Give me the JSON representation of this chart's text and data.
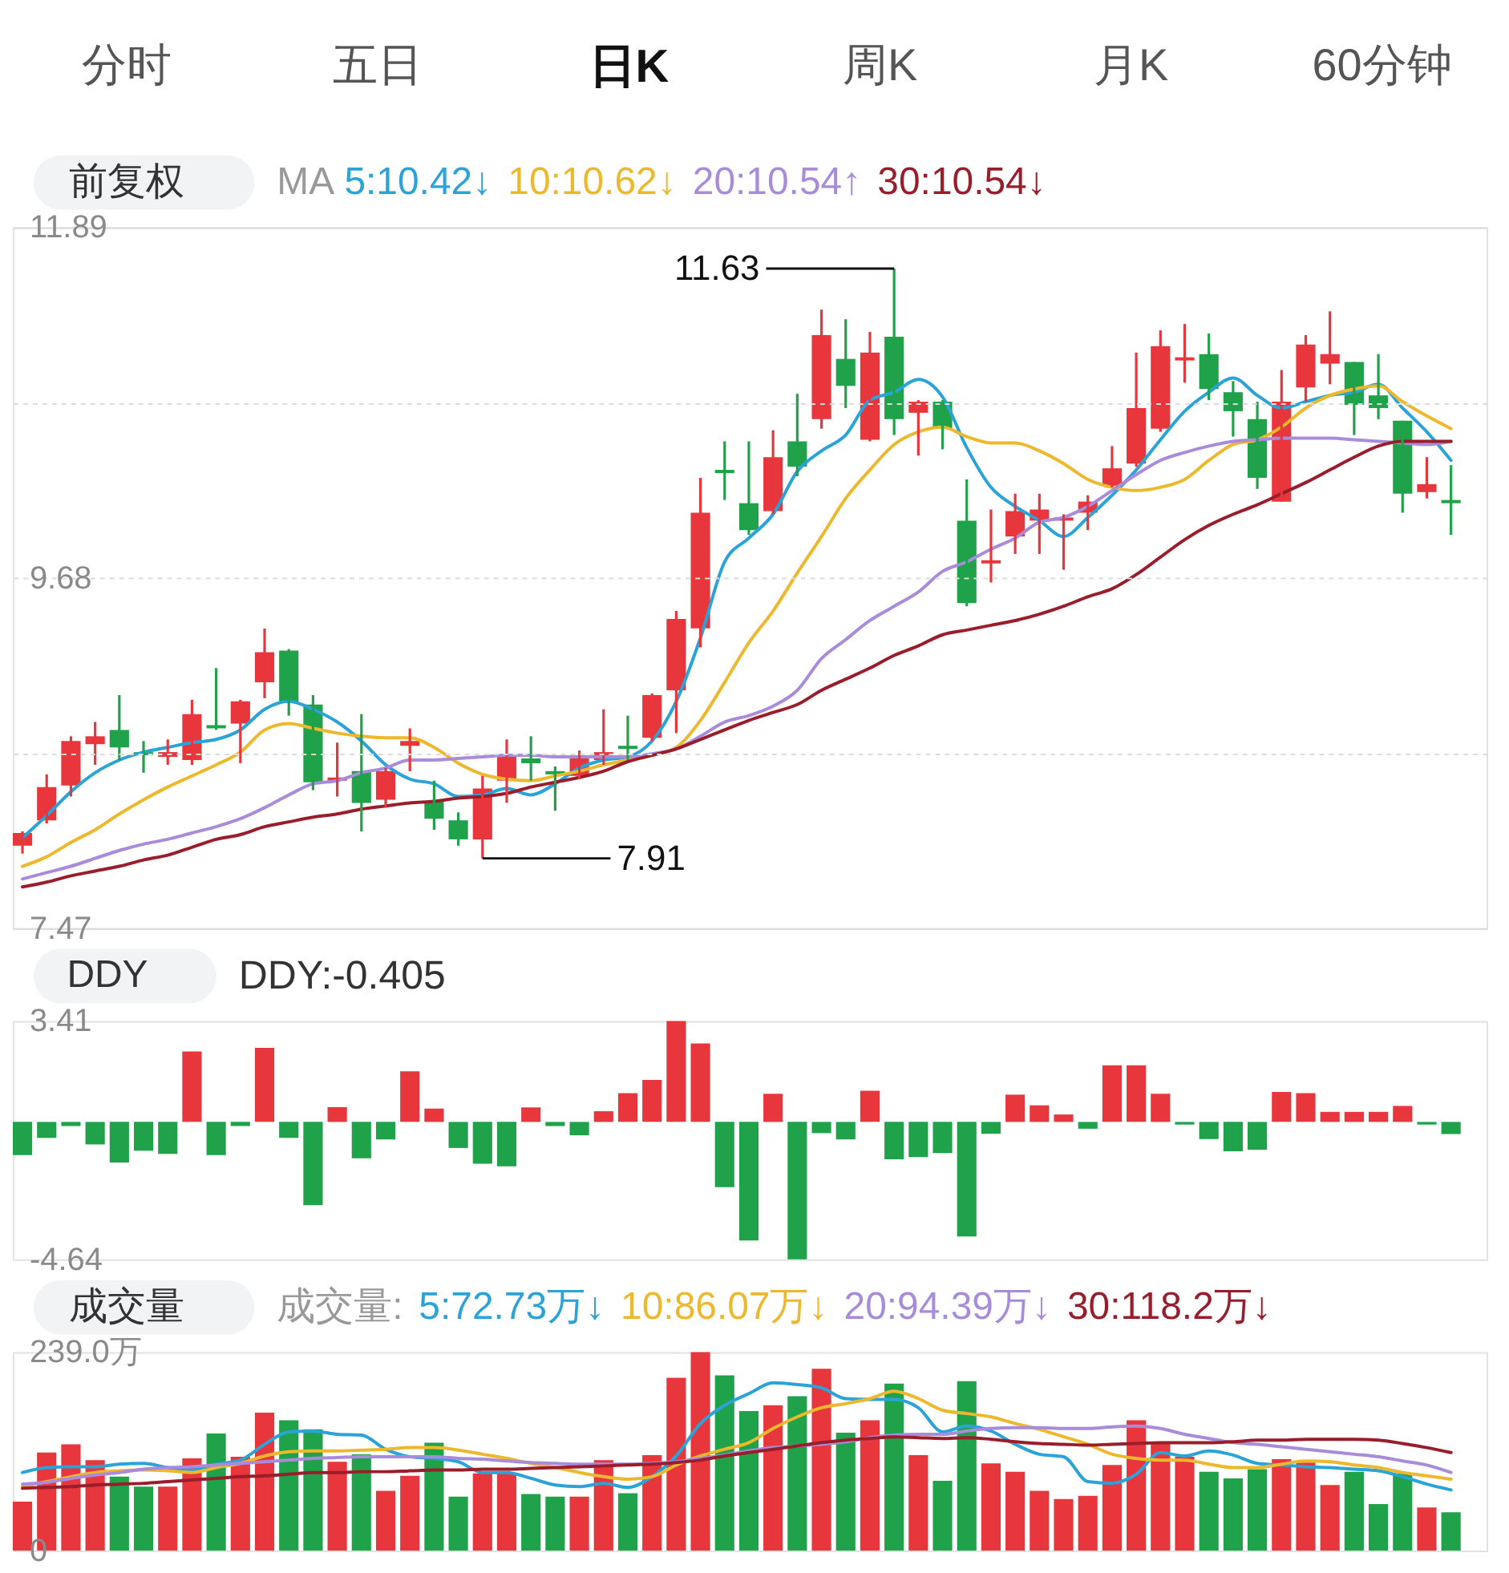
{
  "chart_data": [
    {
      "type": "other",
      "annotations": [
        "分时",
        "五日",
        "日K",
        "周K",
        "月K",
        "60分钟"
      ]
    },
    {
      "type": "candlestick",
      "title": "前复权",
      "annotations": [
        "11.63",
        "7.91"
      ],
      "legend": "top left",
      "legend_title": "MA",
      "categories": [
        null,
        null,
        null,
        null,
        null,
        null,
        null,
        null,
        null,
        null,
        null,
        null,
        null,
        null,
        null,
        null,
        null,
        null,
        null,
        null,
        null,
        null,
        null,
        null,
        null,
        null,
        null,
        null,
        null,
        null,
        null,
        null,
        null,
        null,
        null,
        null,
        null,
        null,
        null,
        null,
        null,
        null,
        null,
        null,
        null,
        null,
        null,
        null,
        null,
        null,
        null,
        null,
        null,
        null,
        null,
        null,
        null,
        null,
        null,
        null
      ],
      "ohlc": [
        [
          7.99,
          8.08,
          7.94,
          8.07
        ],
        [
          8.15,
          8.44,
          8.13,
          8.36
        ],
        [
          8.37,
          8.68,
          8.3,
          8.65
        ],
        [
          8.63,
          8.77,
          8.5,
          8.68
        ],
        [
          8.72,
          8.94,
          8.53,
          8.61
        ],
        [
          8.58,
          8.65,
          8.45,
          8.56
        ],
        [
          8.55,
          8.66,
          8.5,
          8.58
        ],
        [
          8.53,
          8.91,
          8.5,
          8.82
        ],
        [
          8.75,
          9.11,
          8.72,
          8.73
        ],
        [
          8.76,
          8.91,
          8.51,
          8.9
        ],
        [
          9.02,
          9.36,
          8.92,
          9.21
        ],
        [
          9.22,
          9.23,
          8.81,
          8.89
        ],
        [
          8.88,
          8.94,
          8.34,
          8.39
        ],
        [
          8.4,
          8.64,
          8.3,
          8.42
        ],
        [
          8.46,
          8.82,
          8.08,
          8.26
        ],
        [
          8.28,
          8.48,
          8.23,
          8.46
        ],
        [
          8.62,
          8.73,
          8.46,
          8.65
        ],
        [
          8.27,
          8.4,
          8.09,
          8.16
        ],
        [
          8.15,
          8.2,
          7.99,
          8.03
        ],
        [
          8.03,
          8.43,
          7.91,
          8.35
        ],
        [
          8.4,
          8.66,
          8.26,
          8.55
        ],
        [
          8.54,
          8.68,
          8.4,
          8.51
        ],
        [
          8.46,
          8.49,
          8.21,
          8.44
        ],
        [
          8.43,
          8.59,
          8.41,
          8.56
        ],
        [
          8.53,
          8.85,
          8.5,
          8.58
        ],
        [
          8.62,
          8.81,
          8.53,
          8.6
        ],
        [
          8.67,
          8.95,
          8.65,
          8.94
        ],
        [
          8.97,
          9.47,
          8.7,
          9.42
        ],
        [
          9.36,
          10.31,
          9.24,
          10.09
        ],
        [
          10.36,
          10.54,
          10.17,
          10.34
        ],
        [
          10.15,
          10.54,
          9.95,
          9.98
        ],
        [
          10.1,
          10.61,
          10.08,
          10.44
        ],
        [
          10.54,
          10.84,
          10.32,
          10.38
        ],
        [
          10.68,
          11.37,
          10.62,
          11.21
        ],
        [
          11.06,
          11.31,
          10.75,
          10.89
        ],
        [
          10.55,
          11.23,
          10.54,
          11.1
        ],
        [
          11.2,
          11.63,
          10.58,
          10.68
        ],
        [
          10.72,
          10.8,
          10.45,
          10.79
        ],
        [
          10.79,
          10.8,
          10.49,
          10.62
        ],
        [
          10.04,
          10.3,
          9.5,
          9.52
        ],
        [
          9.77,
          10.11,
          9.65,
          9.79
        ],
        [
          9.94,
          10.21,
          9.83,
          10.1
        ],
        [
          10.04,
          10.21,
          9.83,
          10.11
        ],
        [
          10.04,
          10.08,
          9.73,
          10.06
        ],
        [
          10.09,
          10.2,
          9.98,
          10.16
        ],
        [
          10.26,
          10.51,
          10.25,
          10.37
        ],
        [
          10.4,
          11.1,
          10.38,
          10.75
        ],
        [
          10.62,
          11.24,
          10.6,
          11.14
        ],
        [
          11.05,
          11.28,
          10.91,
          11.07
        ],
        [
          11.09,
          11.22,
          10.8,
          10.87
        ],
        [
          10.85,
          10.92,
          10.57,
          10.73
        ],
        [
          10.68,
          10.79,
          10.24,
          10.31
        ],
        [
          10.16,
          10.99,
          10.16,
          10.79
        ],
        [
          10.88,
          11.21,
          10.79,
          11.15
        ],
        [
          11.03,
          11.36,
          10.9,
          11.09
        ],
        [
          11.04,
          11.04,
          10.58,
          10.77
        ],
        [
          10.83,
          11.09,
          10.68,
          10.75
        ],
        [
          10.67,
          10.67,
          10.09,
          10.21
        ],
        [
          10.22,
          10.44,
          10.18,
          10.27
        ],
        [
          10.17,
          10.39,
          9.95,
          10.15
        ]
      ],
      "colors": [
        "#e8363d",
        "#e8363d",
        "#e8363d",
        "#e8363d",
        "#1fa24a",
        "#1fa24a",
        "#e8363d",
        "#e8363d",
        "#1fa24a",
        "#e8363d",
        "#e8363d",
        "#1fa24a",
        "#1fa24a",
        "#e8363d",
        "#1fa24a",
        "#e8363d",
        "#e8363d",
        "#1fa24a",
        "#1fa24a",
        "#e8363d",
        "#e8363d",
        "#1fa24a",
        "#1fa24a",
        "#e8363d",
        "#e8363d",
        "#1fa24a",
        "#e8363d",
        "#e8363d",
        "#e8363d",
        "#1fa24a",
        "#1fa24a",
        "#e8363d",
        "#1fa24a",
        "#e8363d",
        "#1fa24a",
        "#e8363d",
        "#1fa24a",
        "#e8363d",
        "#1fa24a",
        "#1fa24a",
        "#e8363d",
        "#e8363d",
        "#e8363d",
        "#e8363d",
        "#e8363d",
        "#e8363d",
        "#e8363d",
        "#e8363d",
        "#e8363d",
        "#1fa24a",
        "#1fa24a",
        "#1fa24a",
        "#e8363d",
        "#e8363d",
        "#e8363d",
        "#1fa24a",
        "#1fa24a",
        "#1fa24a",
        "#e8363d",
        "#1fa24a"
      ],
      "series": [
        {
          "name": "5:10.42↓",
          "color": "#2aa3d9",
          "type": "line",
          "values": [
            8.04,
            8.18,
            8.33,
            8.45,
            8.53,
            8.58,
            8.61,
            8.64,
            8.66,
            8.72,
            8.85,
            8.9,
            8.85,
            8.77,
            8.65,
            8.5,
            8.41,
            8.38,
            8.3,
            8.31,
            8.35,
            8.31,
            8.38,
            8.48,
            8.53,
            8.55,
            8.65,
            8.9,
            9.3,
            9.78,
            9.93,
            10.08,
            10.35,
            10.48,
            10.58,
            10.8,
            10.85,
            10.93,
            10.82,
            10.5,
            10.25,
            10.13,
            10.04,
            9.94,
            10.06,
            10.2,
            10.36,
            10.55,
            10.73,
            10.85,
            10.94,
            10.83,
            10.75,
            10.79,
            10.83,
            10.85,
            10.9,
            10.75,
            10.6,
            10.42
          ]
        },
        {
          "name": "10:10.62↓",
          "color": "#eeb82c",
          "type": "line",
          "values": [
            7.86,
            7.92,
            8.01,
            8.09,
            8.19,
            8.28,
            8.36,
            8.43,
            8.5,
            8.58,
            8.72,
            8.76,
            8.73,
            8.7,
            8.68,
            8.67,
            8.67,
            8.61,
            8.51,
            8.44,
            8.41,
            8.4,
            8.43,
            8.46,
            8.5,
            8.53,
            8.56,
            8.61,
            8.78,
            9.02,
            9.27,
            9.47,
            9.71,
            9.94,
            10.18,
            10.36,
            10.52,
            10.6,
            10.63,
            10.57,
            10.53,
            10.53,
            10.48,
            10.4,
            10.3,
            10.25,
            10.23,
            10.25,
            10.3,
            10.42,
            10.52,
            10.55,
            10.63,
            10.75,
            10.83,
            10.87,
            10.89,
            10.79,
            10.7,
            10.62
          ]
        },
        {
          "name": "20:10.54↑",
          "color": "#a98bdc",
          "type": "line",
          "values": [
            7.78,
            7.82,
            7.86,
            7.91,
            7.96,
            8.0,
            8.03,
            8.07,
            8.11,
            8.16,
            8.23,
            8.31,
            8.38,
            8.4,
            8.45,
            8.48,
            8.53,
            8.53,
            8.54,
            8.55,
            8.56,
            8.56,
            8.55,
            8.55,
            8.55,
            8.55,
            8.57,
            8.6,
            8.68,
            8.77,
            8.81,
            8.87,
            8.97,
            9.17,
            9.29,
            9.41,
            9.5,
            9.59,
            9.72,
            9.78,
            9.86,
            9.93,
            10.03,
            10.06,
            10.13,
            10.23,
            10.33,
            10.42,
            10.47,
            10.51,
            10.54,
            10.55,
            10.56,
            10.56,
            10.56,
            10.55,
            10.54,
            10.53,
            10.52,
            10.54
          ]
        },
        {
          "name": "30:10.54↓",
          "color": "#9a1d2b",
          "type": "line",
          "values": [
            7.73,
            7.76,
            7.8,
            7.83,
            7.86,
            7.9,
            7.93,
            7.98,
            8.03,
            8.06,
            8.11,
            8.14,
            8.17,
            8.19,
            8.22,
            8.24,
            8.26,
            8.27,
            8.29,
            8.3,
            8.32,
            8.36,
            8.39,
            8.42,
            8.46,
            8.52,
            8.56,
            8.6,
            8.66,
            8.72,
            8.78,
            8.83,
            8.88,
            8.97,
            9.04,
            9.11,
            9.19,
            9.25,
            9.32,
            9.35,
            9.38,
            9.41,
            9.45,
            9.5,
            9.56,
            9.61,
            9.7,
            9.81,
            9.92,
            10.01,
            10.08,
            10.14,
            10.21,
            10.28,
            10.36,
            10.44,
            10.51,
            10.54,
            10.54,
            10.54
          ]
        }
      ],
      "ylim": [
        7.47,
        11.89
      ],
      "yticks": [
        11.89,
        {
          "value": 10.785,
          "label": null
        },
        9.68,
        {
          "value": 8.575,
          "label": null
        },
        7.47
      ],
      "grid": "y",
      "tick_labels": "y"
    },
    {
      "type": "bar",
      "title": "DDY",
      "subtitle": "DDY:-0.405",
      "categories": [
        null,
        null,
        null,
        null,
        null,
        null,
        null,
        null,
        null,
        null,
        null,
        null,
        null,
        null,
        null,
        null,
        null,
        null,
        null,
        null,
        null,
        null,
        null,
        null,
        null,
        null,
        null,
        null,
        null,
        null,
        null,
        null,
        null,
        null,
        null,
        null,
        null,
        null,
        null,
        null,
        null,
        null,
        null,
        null,
        null,
        null,
        null,
        null,
        null,
        null,
        null,
        null,
        null,
        null,
        null,
        null,
        null,
        null,
        null,
        null
      ],
      "values": [
        -1.12,
        -0.54,
        -0.14,
        -0.76,
        -1.37,
        -0.97,
        -1.08,
        2.38,
        -1.12,
        -0.14,
        2.5,
        -0.54,
        -2.81,
        0.5,
        -1.23,
        -0.59,
        1.71,
        0.45,
        -0.88,
        -1.41,
        -1.5,
        0.49,
        -0.14,
        -0.45,
        0.36,
        0.97,
        1.42,
        3.41,
        2.65,
        -2.2,
        -4.0,
        0.95,
        -4.64,
        -0.38,
        -0.59,
        1.05,
        -1.26,
        -1.19,
        -1.05,
        -3.87,
        -0.4,
        0.92,
        0.56,
        0.25,
        -0.23,
        1.91,
        1.91,
        0.95,
        -0.09,
        -0.58,
        -0.99,
        -0.94,
        1.01,
        0.97,
        0.34,
        0.34,
        0.34,
        0.54,
        -0.09,
        -0.41
      ],
      "colors": [
        "#1fa24a",
        "#1fa24a",
        "#1fa24a",
        "#1fa24a",
        "#1fa24a",
        "#1fa24a",
        "#1fa24a",
        "#e8363d",
        "#1fa24a",
        "#1fa24a",
        "#e8363d",
        "#1fa24a",
        "#1fa24a",
        "#e8363d",
        "#1fa24a",
        "#1fa24a",
        "#e8363d",
        "#e8363d",
        "#1fa24a",
        "#1fa24a",
        "#1fa24a",
        "#e8363d",
        "#1fa24a",
        "#1fa24a",
        "#e8363d",
        "#e8363d",
        "#e8363d",
        "#e8363d",
        "#e8363d",
        "#1fa24a",
        "#1fa24a",
        "#e8363d",
        "#1fa24a",
        "#1fa24a",
        "#1fa24a",
        "#e8363d",
        "#1fa24a",
        "#1fa24a",
        "#1fa24a",
        "#1fa24a",
        "#1fa24a",
        "#e8363d",
        "#e8363d",
        "#e8363d",
        "#1fa24a",
        "#e8363d",
        "#e8363d",
        "#e8363d",
        "#1fa24a",
        "#1fa24a",
        "#1fa24a",
        "#1fa24a",
        "#e8363d",
        "#e8363d",
        "#e8363d",
        "#e8363d",
        "#e8363d",
        "#e8363d",
        "#1fa24a",
        "#1fa24a"
      ],
      "ylim": [
        -4.64,
        3.41
      ],
      "yticks": [
        3.41,
        -4.64
      ],
      "tick_labels": "y"
    },
    {
      "type": "bar",
      "title": "成交量",
      "legend": "top",
      "legend_title": "成交量:",
      "categories": [
        null,
        null,
        null,
        null,
        null,
        null,
        null,
        null,
        null,
        null,
        null,
        null,
        null,
        null,
        null,
        null,
        null,
        null,
        null,
        null,
        null,
        null,
        null,
        null,
        null,
        null,
        null,
        null,
        null,
        null,
        null,
        null,
        null,
        null,
        null,
        null,
        null,
        null,
        null,
        null,
        null,
        null,
        null,
        null,
        null,
        null,
        null,
        null,
        null,
        null,
        null,
        null,
        null,
        null,
        null,
        null,
        null,
        null,
        null,
        null
      ],
      "values": [
        59,
        118,
        128,
        109,
        89,
        77,
        77,
        111,
        141,
        113,
        166,
        157,
        146,
        107,
        116,
        72,
        90,
        130,
        65,
        93,
        93,
        68,
        65,
        65,
        109,
        69,
        115,
        208,
        239,
        211,
        168,
        175,
        186,
        219,
        142,
        157,
        201,
        115,
        84,
        204,
        105,
        95,
        72,
        62,
        66,
        103,
        157,
        130,
        113,
        95,
        87,
        98,
        110,
        106,
        79,
        95,
        56,
        93,
        52,
        46
      ],
      "colors": [
        "#e8363d",
        "#e8363d",
        "#e8363d",
        "#e8363d",
        "#1fa24a",
        "#1fa24a",
        "#e8363d",
        "#e8363d",
        "#1fa24a",
        "#e8363d",
        "#e8363d",
        "#1fa24a",
        "#1fa24a",
        "#e8363d",
        "#1fa24a",
        "#e8363d",
        "#e8363d",
        "#1fa24a",
        "#1fa24a",
        "#e8363d",
        "#e8363d",
        "#1fa24a",
        "#1fa24a",
        "#e8363d",
        "#e8363d",
        "#1fa24a",
        "#e8363d",
        "#e8363d",
        "#e8363d",
        "#1fa24a",
        "#1fa24a",
        "#e8363d",
        "#1fa24a",
        "#e8363d",
        "#1fa24a",
        "#e8363d",
        "#1fa24a",
        "#e8363d",
        "#1fa24a",
        "#1fa24a",
        "#e8363d",
        "#e8363d",
        "#e8363d",
        "#e8363d",
        "#e8363d",
        "#e8363d",
        "#e8363d",
        "#e8363d",
        "#e8363d",
        "#1fa24a",
        "#1fa24a",
        "#1fa24a",
        "#e8363d",
        "#e8363d",
        "#e8363d",
        "#1fa24a",
        "#1fa24a",
        "#1fa24a",
        "#e8363d",
        "#1fa24a"
      ],
      "series": [
        {
          "name": "5:72.73万↓",
          "color": "#2aa3d9",
          "type": "line",
          "values": [
            94,
            100,
            101,
            101,
            104,
            105,
            100,
            97,
            104,
            109,
            128,
            143,
            144,
            140,
            139,
            122,
            113,
            111,
            107,
            94,
            94,
            87,
            79,
            77,
            81,
            76,
            89,
            114,
            153,
            175,
            189,
            202,
            200,
            196,
            183,
            182,
            182,
            172,
            143,
            150,
            144,
            128,
            116,
            113,
            83,
            81,
            92,
            118,
            114,
            120,
            115,
            105,
            103,
            101,
            100,
            98,
            96,
            89,
            80,
            73
          ]
        },
        {
          "name": "10:86.07万↓",
          "color": "#eeb82c",
          "type": "line",
          "values": [
            77,
            83,
            89,
            94,
            96,
            97,
            96,
            94,
            100,
            105,
            114,
            119,
            120,
            120,
            121,
            122,
            124,
            124,
            121,
            116,
            111,
            105,
            100,
            94,
            89,
            86,
            89,
            103,
            114,
            122,
            130,
            147,
            161,
            172,
            177,
            183,
            192,
            183,
            169,
            165,
            161,
            153,
            146,
            137,
            128,
            116,
            111,
            109,
            109,
            104,
            100,
            100,
            104,
            108,
            107,
            103,
            100,
            94,
            90,
            86
          ]
        },
        {
          "name": "20:94.39万↓",
          "color": "#a98bdc",
          "type": "line",
          "values": [
            80,
            82,
            87,
            91,
            94,
            98,
            100,
            101,
            103,
            105,
            107,
            109,
            111,
            112,
            113,
            113,
            113,
            113,
            111,
            110,
            108,
            106,
            105,
            104,
            104,
            104,
            105,
            107,
            111,
            115,
            120,
            124,
            126,
            128,
            131,
            136,
            139,
            140,
            140,
            144,
            147,
            148,
            148,
            147,
            147,
            149,
            150,
            147,
            140,
            135,
            130,
            128,
            125,
            122,
            119,
            116,
            113,
            108,
            103,
            94
          ]
        },
        {
          "name": "30:118.2万↓",
          "color": "#9a1d2b",
          "type": "line",
          "values": [
            75,
            76,
            77,
            79,
            80,
            81,
            83,
            85,
            87,
            89,
            90,
            92,
            94,
            94,
            95,
            95,
            96,
            97,
            97,
            98,
            98,
            99,
            100,
            101,
            102,
            103,
            104,
            106,
            109,
            114,
            118,
            122,
            126,
            130,
            133,
            135,
            137,
            136,
            135,
            136,
            134,
            131,
            129,
            128,
            127,
            128,
            129,
            130,
            130,
            130,
            131,
            133,
            133,
            134,
            134,
            134,
            133,
            129,
            124,
            118
          ]
        }
      ],
      "ylim": [
        0,
        239.0
      ],
      "yticks": [
        {
          "value": 239.0,
          "label": "239.0万"
        },
        0
      ],
      "tick_labels": "y"
    }
  ]
}
